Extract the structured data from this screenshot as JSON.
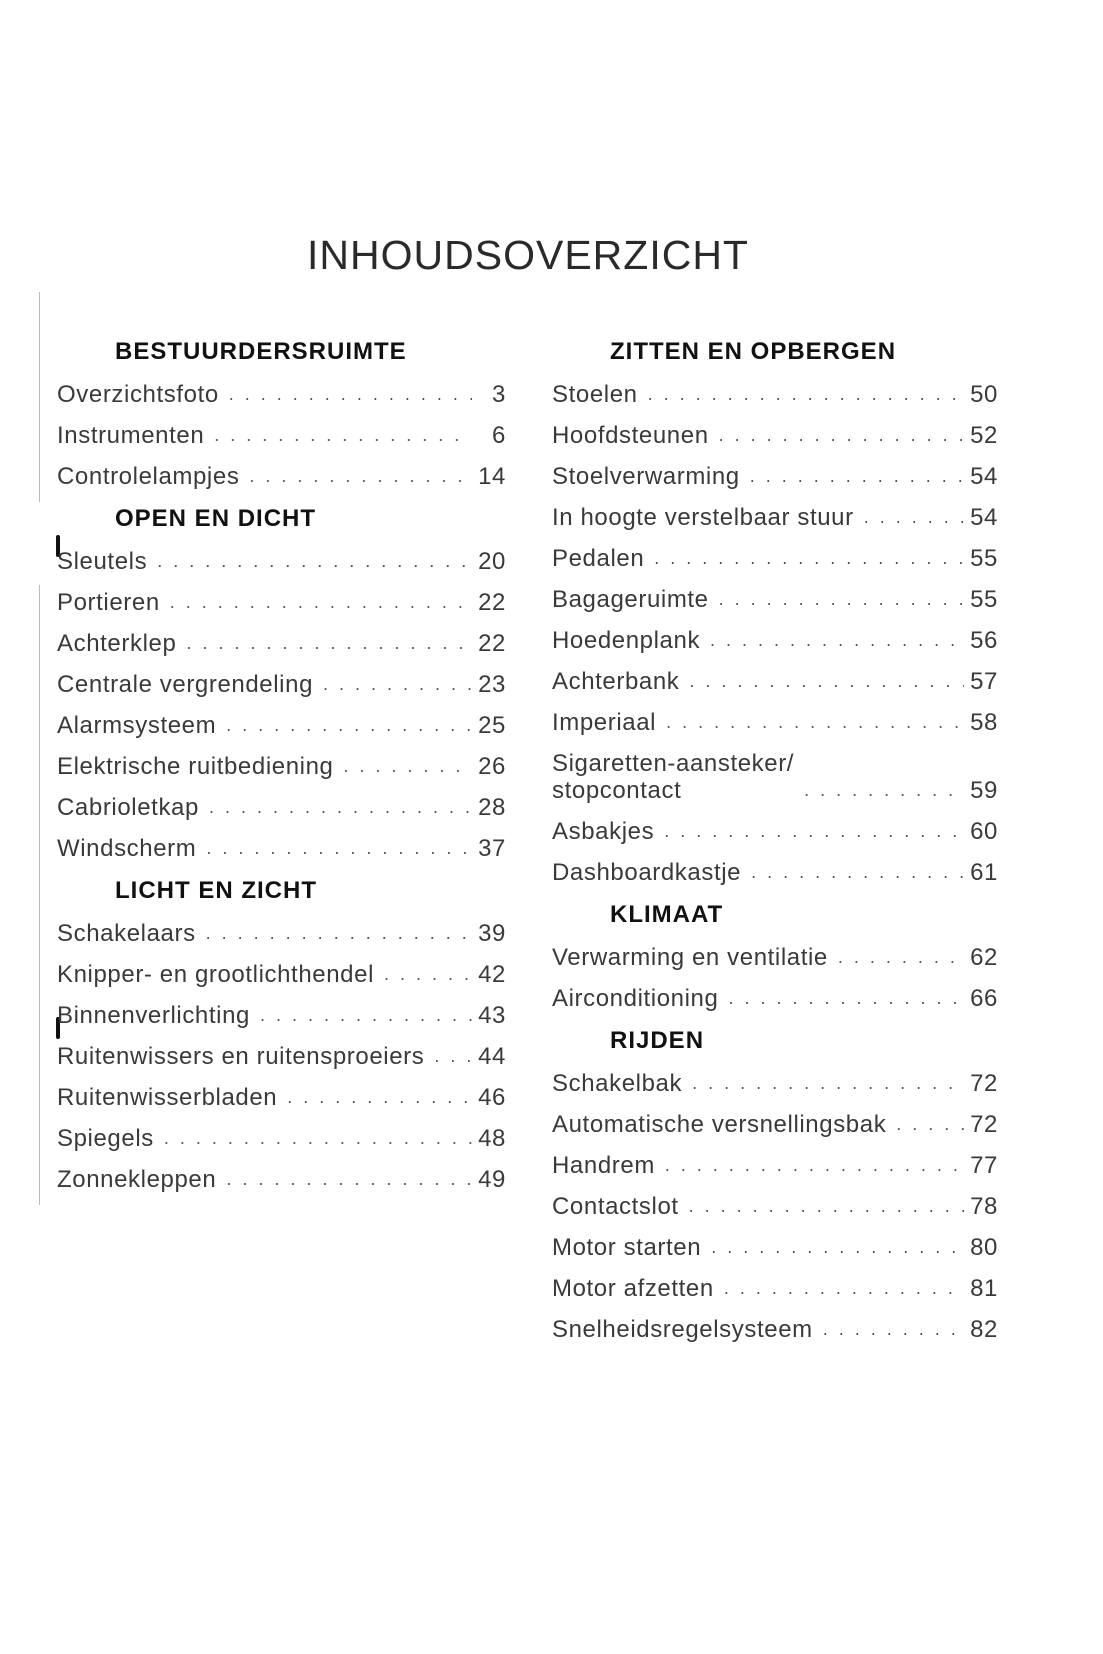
{
  "title": "INHOUDSOVERZICHT",
  "columns": [
    {
      "sections": [
        {
          "heading": "BESTUURDERSRUIMTE",
          "items": [
            {
              "label": "Overzichtsfoto",
              "page": "3"
            },
            {
              "label": "Instrumenten",
              "page": "6"
            },
            {
              "label": "Controlelampjes",
              "page": "14"
            }
          ]
        },
        {
          "heading": "OPEN EN DICHT",
          "items": [
            {
              "label": "Sleutels",
              "page": "20"
            },
            {
              "label": "Portieren",
              "page": "22"
            },
            {
              "label": "Achterklep",
              "page": "22"
            },
            {
              "label": "Centrale vergrendeling",
              "page": "23"
            },
            {
              "label": "Alarmsysteem",
              "page": "25"
            },
            {
              "label": "Elektrische ruitbediening",
              "page": "26"
            },
            {
              "label": "Cabrioletkap",
              "page": "28"
            },
            {
              "label": "Windscherm",
              "page": "37"
            }
          ]
        },
        {
          "heading": "LICHT EN ZICHT",
          "items": [
            {
              "label": "Schakelaars",
              "page": "39"
            },
            {
              "label": "Knipper- en grootlichthendel",
              "page": "42"
            },
            {
              "label": "Binnenverlichting",
              "page": "43"
            },
            {
              "label": "Ruitenwissers en ruitensproeiers",
              "page": "44"
            },
            {
              "label": "Ruitenwisserbladen",
              "page": "46"
            },
            {
              "label": "Spiegels",
              "page": "48"
            },
            {
              "label": "Zonnekleppen",
              "page": "49"
            }
          ]
        }
      ]
    },
    {
      "sections": [
        {
          "heading": "ZITTEN EN OPBERGEN",
          "items": [
            {
              "label": "Stoelen",
              "page": "50"
            },
            {
              "label": "Hoofdsteunen",
              "page": "52"
            },
            {
              "label": "Stoelverwarming",
              "page": "54"
            },
            {
              "label": "In hoogte verstelbaar stuur",
              "page": "54"
            },
            {
              "label": "Pedalen",
              "page": "55"
            },
            {
              "label": "Bagageruimte",
              "page": "55"
            },
            {
              "label": "Hoedenplank",
              "page": "56"
            },
            {
              "label": "Achterbank",
              "page": "57"
            },
            {
              "label": "Imperiaal",
              "page": "58"
            },
            {
              "label": "Sigaretten-aansteker/\nstopcontact",
              "page": "59"
            },
            {
              "label": "Asbakjes",
              "page": "60"
            },
            {
              "label": "Dashboardkastje",
              "page": "61"
            }
          ]
        },
        {
          "heading": "KLIMAAT",
          "items": [
            {
              "label": "Verwarming en ventilatie",
              "page": "62"
            },
            {
              "label": "Airconditioning",
              "page": "66"
            }
          ]
        },
        {
          "heading": "RIJDEN",
          "items": [
            {
              "label": "Schakelbak",
              "page": "72"
            },
            {
              "label": "Automatische versnellingsbak",
              "page": "72"
            },
            {
              "label": "Handrem",
              "page": "77"
            },
            {
              "label": "Contactslot",
              "page": "78"
            },
            {
              "label": "Motor starten",
              "page": "80"
            },
            {
              "label": "Motor afzetten",
              "page": "81"
            },
            {
              "label": "Snelheidsregelsysteem",
              "page": "82"
            }
          ]
        }
      ]
    }
  ]
}
